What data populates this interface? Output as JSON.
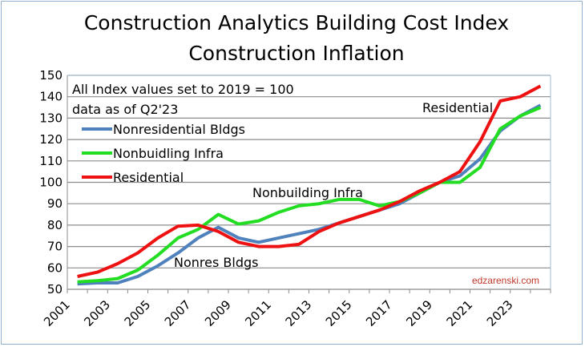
{
  "chart_data": {
    "type": "line",
    "title": "Construction Analytics Building Cost Index",
    "subtitle": "Construction Inflation",
    "xlabel": "",
    "ylabel": "",
    "ylim": [
      50,
      150
    ],
    "yticks": [
      50,
      60,
      70,
      80,
      90,
      100,
      110,
      120,
      130,
      140,
      150
    ],
    "x": [
      2001,
      2002,
      2003,
      2004,
      2005,
      2006,
      2007,
      2008,
      2009,
      2010,
      2011,
      2012,
      2013,
      2014,
      2015,
      2016,
      2017,
      2018,
      2019,
      2020,
      2021,
      2022,
      2023,
      2024
    ],
    "xtick_labels": [
      "2001",
      "2003",
      "2005",
      "2007",
      "2009",
      "2011",
      "2013",
      "2015",
      "2017",
      "2019",
      "2021",
      "2023"
    ],
    "grid": "horizontal",
    "legend_position": "top-left",
    "notes": [
      "All Index values set to 2019 = 100",
      "data as of Q2'23"
    ],
    "annotations": [
      "Residential",
      "Nonbuilding Infra",
      "Nonres Bldgs"
    ],
    "watermark": "edzarenski.com",
    "series": [
      {
        "name": "Nonresidential Bldgs",
        "color": "#4f81bd",
        "values": [
          52.5,
          53,
          53,
          56,
          61,
          67,
          74,
          79,
          74,
          72,
          74,
          76,
          78,
          81,
          84,
          87,
          90,
          95,
          100,
          103,
          111,
          124,
          131,
          136
        ]
      },
      {
        "name": "Nonbuidling Infra",
        "color": "#22dd22",
        "values": [
          53.5,
          54,
          55,
          59,
          66,
          74,
          78,
          85,
          80.5,
          82,
          86,
          89,
          90,
          92,
          92,
          89,
          91,
          95,
          100,
          100,
          107,
          125,
          131,
          135
        ]
      },
      {
        "name": "Residential",
        "color": "#ee1111",
        "values": [
          56,
          58,
          62,
          67,
          74,
          79.5,
          80,
          77,
          72,
          70,
          70,
          71,
          77,
          81,
          84,
          87,
          91,
          96,
          100,
          105,
          119,
          138,
          140,
          145
        ]
      }
    ]
  }
}
